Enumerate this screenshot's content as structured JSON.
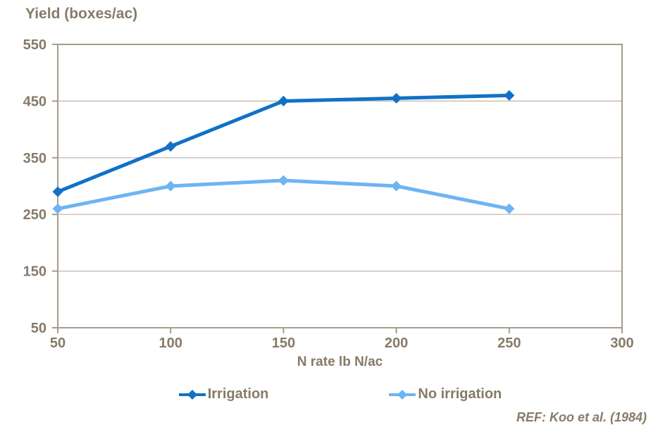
{
  "page": {
    "ref_note": "REF: Koo et al. (1984)"
  },
  "chart_data": {
    "type": "line",
    "title": "Yield (boxes/ac)",
    "xlabel": "N rate lb N/ac",
    "ylabel": "Yield (boxes/ac)",
    "x": [
      50,
      100,
      150,
      200,
      250
    ],
    "series": [
      {
        "name": "Irrigation",
        "color": "#1171c7",
        "values": [
          290,
          370,
          450,
          455,
          460
        ]
      },
      {
        "name": "No irrigation",
        "color": "#6db4f3",
        "values": [
          260,
          300,
          310,
          300,
          260
        ]
      }
    ],
    "x_ticks": [
      50,
      100,
      150,
      200,
      250,
      300
    ],
    "y_ticks": [
      550,
      450,
      350,
      250,
      150,
      50
    ],
    "xlim": [
      50,
      300
    ],
    "ylim": [
      50,
      550
    ],
    "grid": "horizontal",
    "legend_position": "bottom",
    "axis_color": "#a69b8c",
    "grid_color": "#bdb4a7",
    "text_color": "#877a68"
  }
}
